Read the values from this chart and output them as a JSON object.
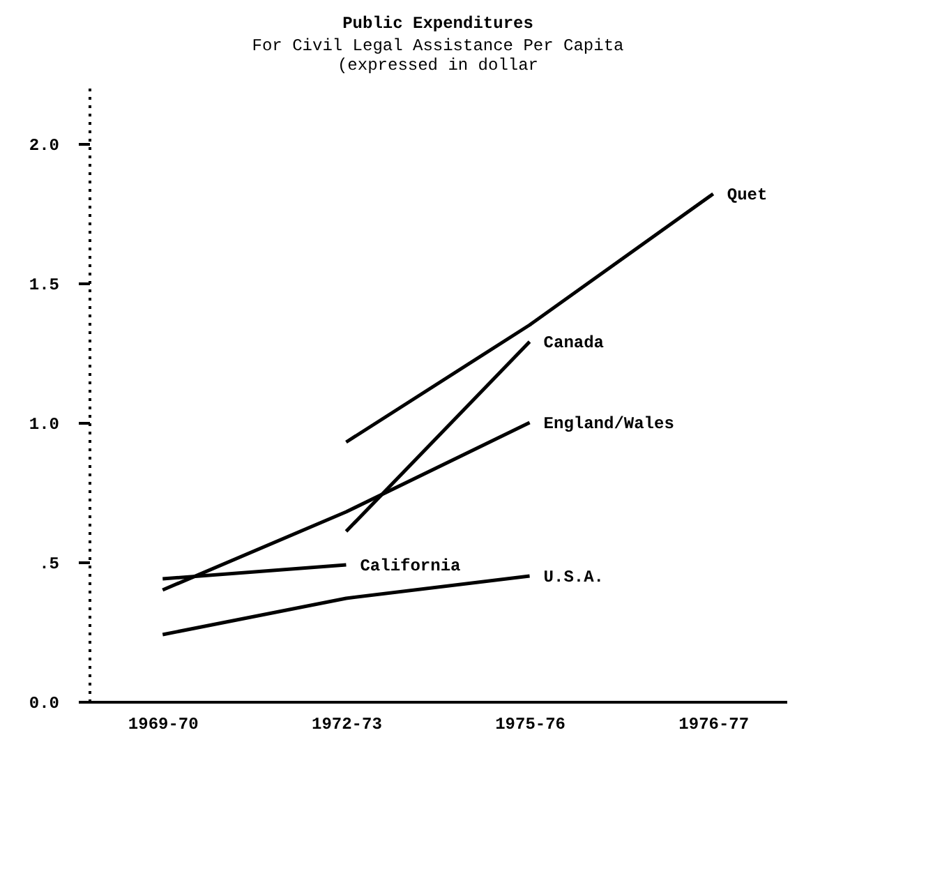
{
  "chart_data": {
    "type": "line",
    "title": "Public Expenditures",
    "subtitle": "For Civil Legal Assistance Per Capita",
    "annotations": [
      "(expressed in dollar"
    ],
    "categories": [
      "1969-70",
      "1972-73",
      "1975-76",
      "1976-77"
    ],
    "series": [
      {
        "name": "Quet",
        "color": "#000000",
        "values": [
          null,
          0.93,
          1.35,
          1.82
        ]
      },
      {
        "name": "Canada",
        "color": "#000000",
        "values": [
          null,
          0.61,
          1.29,
          null
        ]
      },
      {
        "name": "England/Wales",
        "color": "#000000",
        "values": [
          0.4,
          0.68,
          1.0,
          null
        ]
      },
      {
        "name": "California",
        "color": "#000000",
        "values": [
          0.44,
          0.49,
          null,
          null
        ]
      },
      {
        "name": "U.S.A.",
        "color": "#000000",
        "values": [
          0.24,
          0.37,
          0.45,
          null
        ]
      }
    ],
    "ylim": [
      0,
      2.2
    ],
    "yticks": [
      {
        "value": 0,
        "label": "0.0"
      },
      {
        "value": 0.5,
        "label": ".5"
      },
      {
        "value": 1,
        "label": "1.0"
      },
      {
        "value": 1.5,
        "label": "1.5"
      },
      {
        "value": 2,
        "label": "2.0"
      }
    ],
    "grid": false,
    "legend": false,
    "marker": "none",
    "line_style": "solid"
  }
}
